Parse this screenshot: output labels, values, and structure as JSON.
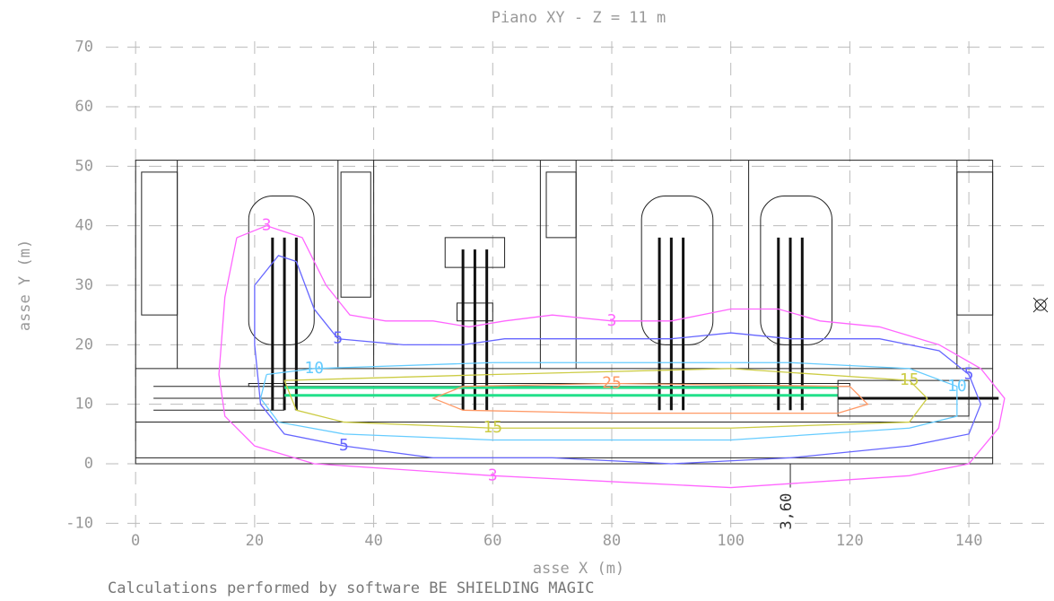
{
  "chart_data": {
    "type": "contour",
    "title": "Piano XY - Z = 11 m",
    "x_label": "asse X (m)",
    "y_label": "asse Y (m)",
    "footer": "Calculations performed by software BE SHIELDING MAGIC",
    "annotation": "3,60",
    "xlim": [
      -5,
      154
    ],
    "ylim": [
      -11,
      71
    ],
    "xticks": [
      0,
      20,
      40,
      60,
      80,
      100,
      120,
      140
    ],
    "yticks": [
      -10,
      0,
      10,
      20,
      30,
      40,
      50,
      60,
      70
    ],
    "grid": true,
    "contours": [
      {
        "level": 3,
        "color": "#ff66ff",
        "x": [
          17,
          22,
          28,
          32,
          36,
          42,
          50,
          56,
          62,
          70,
          80,
          90,
          100,
          108,
          115,
          125,
          135,
          142,
          146,
          145,
          140,
          130,
          115,
          100,
          80,
          60,
          45,
          30,
          20,
          15,
          14,
          15,
          17
        ],
        "y": [
          38,
          40,
          38,
          30,
          25,
          24,
          24,
          23,
          24,
          25,
          24,
          24,
          26,
          26,
          24,
          23,
          20,
          16,
          11,
          6,
          0,
          -2,
          -3,
          -4,
          -3,
          -2,
          -1,
          0,
          3,
          8,
          15,
          28,
          38
        ]
      },
      {
        "level": 5,
        "color": "#6666ff",
        "x": [
          20,
          24,
          27,
          30,
          34,
          45,
          55,
          62,
          75,
          90,
          100,
          110,
          125,
          135,
          140,
          142,
          140,
          130,
          110,
          90,
          70,
          50,
          35,
          25,
          21,
          20,
          20
        ],
        "y": [
          30,
          35,
          34,
          26,
          21,
          20,
          20,
          21,
          21,
          21,
          22,
          21,
          21,
          19,
          15,
          10,
          5,
          3,
          1,
          0,
          1,
          1,
          3,
          5,
          10,
          20,
          30
        ]
      },
      {
        "level": 10,
        "color": "#66ccff",
        "x": [
          22,
          30,
          60,
          80,
          110,
          130,
          138,
          138,
          130,
          100,
          60,
          35,
          24,
          21,
          22
        ],
        "y": [
          15,
          16,
          17,
          17,
          17,
          16,
          13,
          8,
          6,
          4,
          4,
          5,
          7,
          11,
          15
        ]
      },
      {
        "level": 15,
        "color": "#cccc44",
        "x": [
          25,
          60,
          100,
          130,
          133,
          130,
          100,
          60,
          35,
          27,
          25
        ],
        "y": [
          14,
          15,
          16,
          14,
          11,
          7,
          6,
          6,
          7,
          9,
          14
        ]
      },
      {
        "level": 25,
        "color": "#ff9966",
        "x": [
          55,
          80,
          120,
          123,
          118,
          80,
          55,
          50,
          55
        ],
        "y": [
          13,
          13.5,
          13,
          10,
          8.5,
          8.5,
          9,
          11,
          13
        ]
      }
    ]
  }
}
